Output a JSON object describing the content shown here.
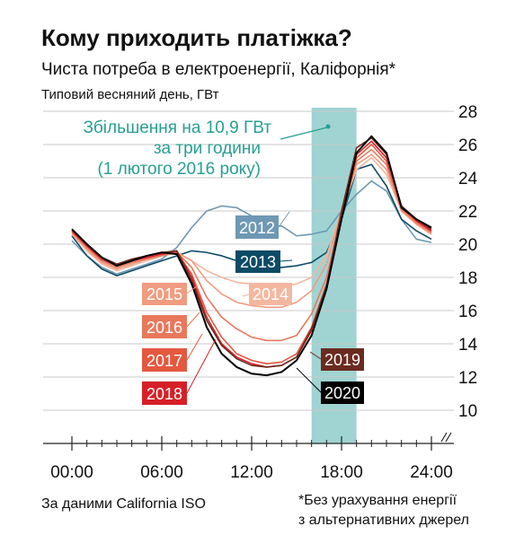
{
  "chart_data": {
    "type": "line",
    "title": "Кому приходить платіжка?",
    "subtitle": "Чиста потреба в електроенергії, Каліфорнія*",
    "y_label": "Типовий весняний день, ГВт",
    "annotation": [
      "Збільшення на 10,9 ГВт",
      "за три години",
      "(1 лютого 2016 року)"
    ],
    "source": "За даними California ISO",
    "note": [
      "*Без урахування енергії",
      "з альтернативних джерел"
    ],
    "shaded_x": [
      16,
      19
    ],
    "shade_color": "#9fd4d2",
    "x": [
      0,
      1,
      2,
      3,
      4,
      5,
      6,
      7,
      8,
      9,
      10,
      11,
      12,
      13,
      14,
      15,
      16,
      17,
      18,
      19,
      20,
      21,
      22,
      23,
      24
    ],
    "xlim": [
      0,
      24
    ],
    "xticks": [
      {
        "value": 0,
        "label": "00:00"
      },
      {
        "value": 6,
        "label": "06:00"
      },
      {
        "value": 12,
        "label": "12:00"
      },
      {
        "value": 18,
        "label": "18:00"
      },
      {
        "value": 24,
        "label": "24:00"
      }
    ],
    "ylim": [
      8,
      28
    ],
    "yticks": [
      10,
      12,
      14,
      16,
      18,
      20,
      22,
      24,
      26,
      28
    ],
    "grid": true,
    "series": [
      {
        "name": "2012",
        "color": "#6e98b3",
        "values": [
          20.2,
          19.3,
          18.6,
          18.2,
          18.5,
          18.8,
          19.1,
          19.8,
          21.0,
          22.0,
          22.3,
          22.2,
          21.7,
          21.0,
          21.1,
          20.5,
          20.6,
          20.8,
          22.0,
          23.0,
          23.8,
          23.2,
          21.5,
          20.3,
          20.1
        ]
      },
      {
        "name": "2013",
        "color": "#0d4b66",
        "values": [
          20.5,
          19.3,
          18.5,
          18.1,
          18.4,
          18.7,
          19.0,
          19.3,
          19.6,
          19.5,
          19.3,
          19.0,
          18.8,
          18.6,
          18.6,
          18.7,
          18.9,
          19.5,
          21.5,
          24.5,
          24.8,
          23.5,
          21.5,
          20.8,
          20.3
        ]
      },
      {
        "name": "2014",
        "color": "#f3b7a0",
        "values": [
          20.6,
          19.6,
          18.8,
          18.4,
          18.7,
          19.0,
          19.3,
          19.5,
          19.0,
          18.4,
          18.0,
          17.7,
          17.6,
          17.5,
          17.5,
          17.6,
          18.0,
          19.3,
          22.0,
          24.5,
          25.2,
          24.2,
          22.0,
          21.2,
          20.6
        ]
      },
      {
        "name": "2015",
        "color": "#ef9c80",
        "values": [
          20.7,
          19.7,
          18.9,
          18.5,
          18.8,
          19.1,
          19.3,
          19.5,
          19.0,
          17.8,
          17.0,
          16.5,
          16.3,
          16.2,
          16.2,
          16.5,
          17.2,
          18.8,
          22.0,
          24.8,
          25.4,
          24.5,
          22.0,
          21.2,
          20.6
        ]
      },
      {
        "name": "2016",
        "color": "#e8785c",
        "values": [
          20.7,
          19.8,
          19.0,
          18.6,
          18.9,
          19.1,
          19.3,
          19.5,
          18.6,
          16.8,
          15.6,
          14.9,
          14.4,
          14.2,
          14.2,
          14.5,
          15.8,
          18.0,
          21.8,
          25.0,
          25.7,
          24.8,
          22.1,
          21.3,
          20.7
        ]
      },
      {
        "name": "2017",
        "color": "#e45840",
        "values": [
          20.8,
          19.9,
          19.1,
          18.7,
          19.0,
          19.2,
          19.4,
          19.5,
          18.2,
          15.9,
          14.4,
          13.4,
          13.0,
          12.8,
          12.9,
          13.4,
          15.0,
          17.6,
          21.5,
          25.2,
          26.0,
          25.0,
          22.2,
          21.4,
          20.8
        ]
      },
      {
        "name": "2018",
        "color": "#d62027",
        "values": [
          20.8,
          19.9,
          19.1,
          18.7,
          19.0,
          19.2,
          19.4,
          19.6,
          18.0,
          15.6,
          14.0,
          13.2,
          12.8,
          12.6,
          12.7,
          13.2,
          14.8,
          17.4,
          21.5,
          25.4,
          26.2,
          25.2,
          22.3,
          21.4,
          20.8
        ]
      },
      {
        "name": "2019",
        "color": "#6b2b1f",
        "values": [
          20.9,
          20.0,
          19.2,
          18.8,
          19.1,
          19.3,
          19.5,
          19.6,
          17.8,
          15.4,
          13.9,
          13.1,
          12.7,
          12.6,
          12.7,
          13.2,
          14.9,
          17.5,
          22.0,
          25.8,
          26.4,
          25.4,
          22.3,
          21.5,
          20.9
        ]
      },
      {
        "name": "2020",
        "color": "#000000",
        "values": [
          20.9,
          20.0,
          19.2,
          18.7,
          19.0,
          19.3,
          19.5,
          19.4,
          17.6,
          15.0,
          13.4,
          12.6,
          12.2,
          12.1,
          12.3,
          13.0,
          14.5,
          17.3,
          21.5,
          25.5,
          26.5,
          25.5,
          22.2,
          21.5,
          21.0
        ]
      }
    ]
  }
}
